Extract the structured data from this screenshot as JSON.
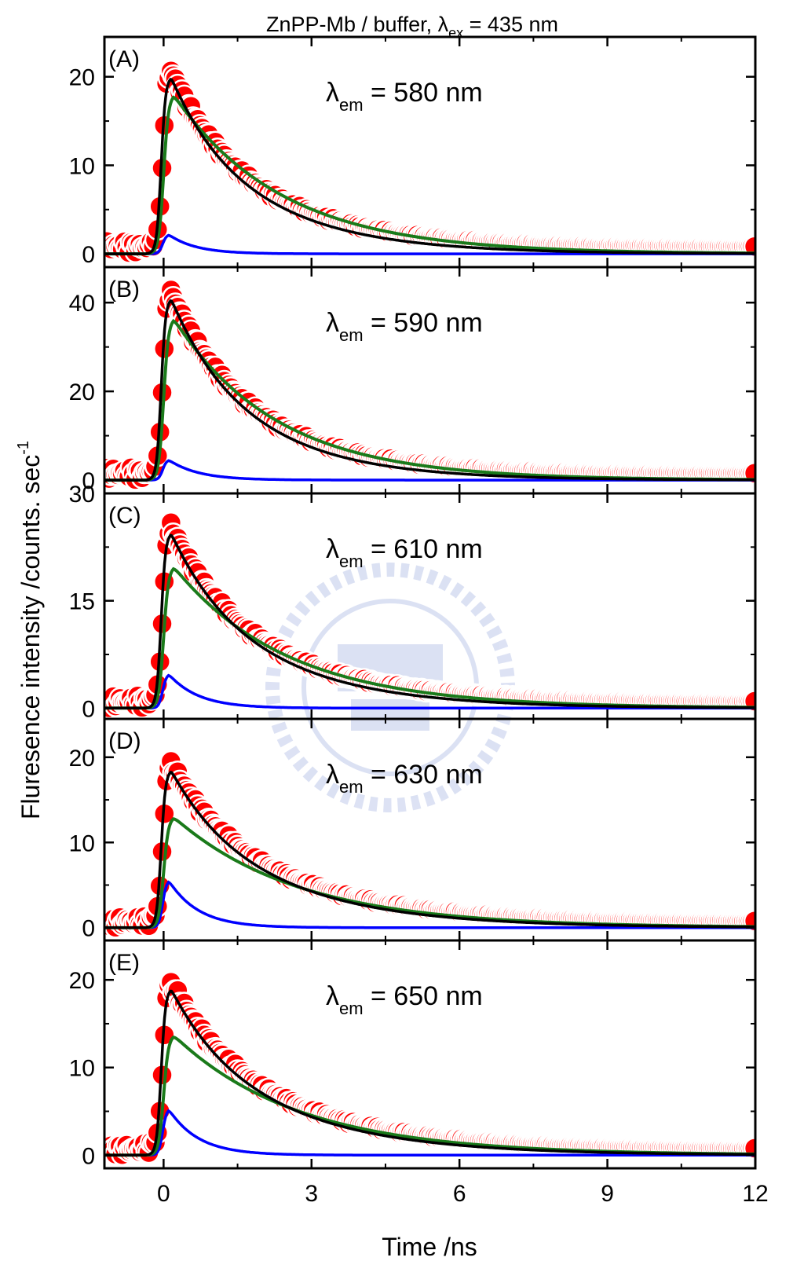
{
  "figure_title": {
    "main": "ZnPP-Mb / buffer, λ",
    "sub": "ex",
    "rest": " = 435 nm"
  },
  "colors": {
    "data_points": "#ff0000",
    "total_fit": "#000000",
    "fast_component": "#0000ff",
    "slow_component": "#1a7a1a",
    "axes": "#000000"
  },
  "chart_data": {
    "type": "line",
    "xlabel": "Time /ns",
    "ylabel": "Fluresence intensity /counts. sec",
    "ylabel_sup": "-1",
    "x_range": [
      -1.2,
      12
    ],
    "x_ticks": [
      0,
      3,
      6,
      9,
      12
    ],
    "x_tick_labels": [
      "0",
      "3",
      "6",
      "9",
      "12"
    ],
    "panels": [
      {
        "label": "(A)",
        "lambda_prefix": "λ",
        "lambda_sub": "em",
        "lambda_value": " = 580 nm",
        "y_range": [
          -1.5,
          24.5
        ],
        "y_ticks": [
          0,
          10,
          20
        ],
        "y_tick_labels": [
          "0",
          "10",
          "20"
        ],
        "peak_total": 20,
        "peak_slow": 18,
        "peak_fast": 2.2,
        "tau_slow": 2.0,
        "tau_fast": 0.55,
        "baseline_data": 0.8
      },
      {
        "label": "(B)",
        "lambda_prefix": "λ",
        "lambda_sub": "em",
        "lambda_value": " = 590 nm",
        "y_range": [
          -3,
          48
        ],
        "y_ticks": [
          0,
          20,
          40
        ],
        "y_tick_labels": [
          "0",
          "20",
          "40"
        ],
        "peak_total": 41,
        "peak_slow": 36.5,
        "peak_fast": 4.6,
        "tau_slow": 1.9,
        "tau_fast": 0.6,
        "baseline_data": 1.5
      },
      {
        "label": "(C)",
        "lambda_prefix": "λ",
        "lambda_sub": "em",
        "lambda_value": " = 610 nm",
        "y_range": [
          -1.5,
          30
        ],
        "y_ticks": [
          0,
          15,
          30
        ],
        "y_tick_labels": [
          "0",
          "15",
          "30"
        ],
        "peak_total": 24.5,
        "peak_slow": 19.8,
        "peak_fast": 4.8,
        "tau_slow": 2.1,
        "tau_fast": 0.6,
        "baseline_data": 0.9
      },
      {
        "label": "(D)",
        "lambda_prefix": "λ",
        "lambda_sub": "em",
        "lambda_value": " = 630 nm",
        "y_range": [
          -1.5,
          24.5
        ],
        "y_ticks": [
          0,
          10,
          20
        ],
        "y_tick_labels": [
          "0",
          "10",
          "20"
        ],
        "peak_total": 18.5,
        "peak_slow": 13,
        "peak_fast": 5.6,
        "tau_slow": 2.3,
        "tau_fast": 0.6,
        "baseline_data": 0.7
      },
      {
        "label": "(E)",
        "lambda_prefix": "λ",
        "lambda_sub": "em",
        "lambda_value": " = 650 nm",
        "y_range": [
          -1.5,
          24.5
        ],
        "y_ticks": [
          0,
          10,
          20
        ],
        "y_tick_labels": [
          "0",
          "10",
          "20"
        ],
        "peak_total": 19,
        "peak_slow": 13.7,
        "peak_fast": 5.3,
        "tau_slow": 2.3,
        "tau_fast": 0.6,
        "baseline_data": 0.7
      }
    ]
  }
}
